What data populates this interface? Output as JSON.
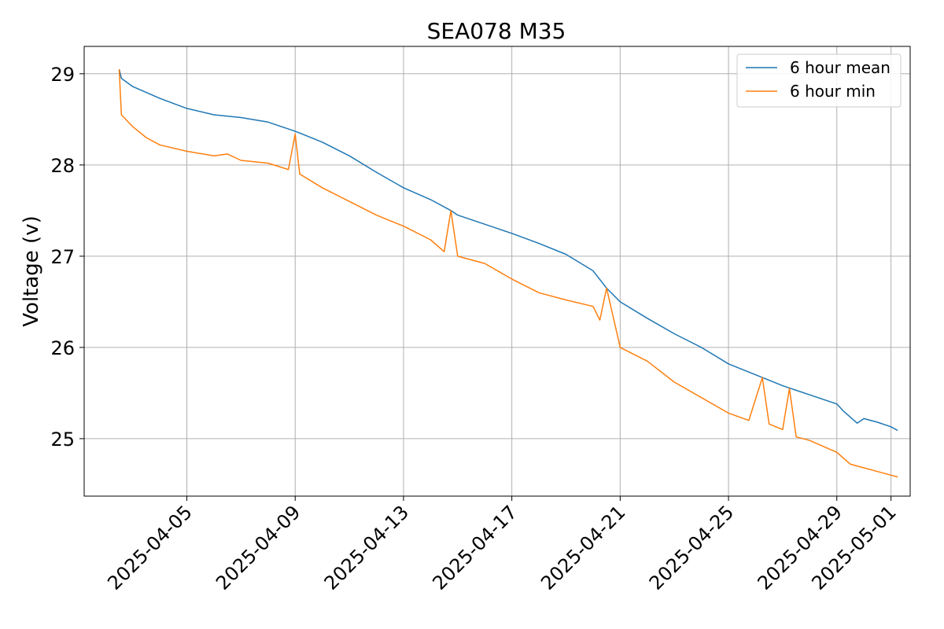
{
  "chart_data": {
    "type": "line",
    "title": "SEA078 M35",
    "xlabel": "",
    "ylabel": "Voltage (v)",
    "x_ticks": [
      "2025-04-05",
      "2025-04-09",
      "2025-04-13",
      "2025-04-17",
      "2025-04-21",
      "2025-04-25",
      "2025-04-29",
      "2025-05-01"
    ],
    "y_ticks": [
      25,
      26,
      27,
      28,
      29
    ],
    "xlim": [
      "2025-04-01T05:00",
      "2025-05-01T17:00"
    ],
    "ylim": [
      24.37,
      29.3
    ],
    "grid": true,
    "legend_position": "top-right",
    "colors": {
      "mean": "#1f77b4",
      "min": "#ff7f0e"
    },
    "series": [
      {
        "name": "6 hour mean",
        "x": [
          "2025-04-02T12:00",
          "2025-04-02T14:00",
          "2025-04-03T00:00",
          "2025-04-04T00:00",
          "2025-04-05T00:00",
          "2025-04-06T00:00",
          "2025-04-07T00:00",
          "2025-04-08T00:00",
          "2025-04-09T00:00",
          "2025-04-10T00:00",
          "2025-04-11T00:00",
          "2025-04-12T00:00",
          "2025-04-13T00:00",
          "2025-04-14T00:00",
          "2025-04-14T18:00",
          "2025-04-15T00:00",
          "2025-04-16T00:00",
          "2025-04-17T00:00",
          "2025-04-18T00:00",
          "2025-04-19T00:00",
          "2025-04-20T00:00",
          "2025-04-20T12:00",
          "2025-04-21T00:00",
          "2025-04-22T00:00",
          "2025-04-23T00:00",
          "2025-04-24T00:00",
          "2025-04-25T00:00",
          "2025-04-26T00:00",
          "2025-04-27T00:00",
          "2025-04-28T00:00",
          "2025-04-29T00:00",
          "2025-04-29T06:00",
          "2025-04-29T18:00",
          "2025-04-30T00:00",
          "2025-04-30T12:00",
          "2025-05-01T00:00",
          "2025-05-01T06:00"
        ],
        "values": [
          29.05,
          28.95,
          28.86,
          28.73,
          28.62,
          28.55,
          28.52,
          28.47,
          28.37,
          28.25,
          28.1,
          27.92,
          27.75,
          27.62,
          27.5,
          27.45,
          27.35,
          27.25,
          27.14,
          27.02,
          26.84,
          26.65,
          26.5,
          26.32,
          26.15,
          26.0,
          25.82,
          25.7,
          25.58,
          25.48,
          25.38,
          25.3,
          25.17,
          25.22,
          25.18,
          25.13,
          25.09
        ]
      },
      {
        "name": "6 hour min",
        "x": [
          "2025-04-02T12:00",
          "2025-04-02T14:00",
          "2025-04-03T00:00",
          "2025-04-03T12:00",
          "2025-04-04T00:00",
          "2025-04-05T00:00",
          "2025-04-06T00:00",
          "2025-04-06T12:00",
          "2025-04-07T00:00",
          "2025-04-08T00:00",
          "2025-04-08T18:00",
          "2025-04-09T00:00",
          "2025-04-09T04:00",
          "2025-04-10T00:00",
          "2025-04-11T00:00",
          "2025-04-12T00:00",
          "2025-04-13T00:00",
          "2025-04-14T00:00",
          "2025-04-14T12:00",
          "2025-04-14T18:00",
          "2025-04-15T00:00",
          "2025-04-16T00:00",
          "2025-04-17T00:00",
          "2025-04-18T00:00",
          "2025-04-19T00:00",
          "2025-04-20T00:00",
          "2025-04-20T06:00",
          "2025-04-20T12:00",
          "2025-04-21T00:00",
          "2025-04-22T00:00",
          "2025-04-23T00:00",
          "2025-04-24T00:00",
          "2025-04-25T00:00",
          "2025-04-25T18:00",
          "2025-04-26T06:00",
          "2025-04-26T12:00",
          "2025-04-27T00:00",
          "2025-04-27T06:00",
          "2025-04-27T12:00",
          "2025-04-28T00:00",
          "2025-04-29T00:00",
          "2025-04-29T12:00",
          "2025-04-30T00:00",
          "2025-04-30T12:00",
          "2025-05-01T00:00",
          "2025-05-01T06:00"
        ],
        "values": [
          29.05,
          28.55,
          28.42,
          28.3,
          28.22,
          28.15,
          28.1,
          28.12,
          28.05,
          28.02,
          27.95,
          28.34,
          27.9,
          27.75,
          27.6,
          27.45,
          27.33,
          27.18,
          27.05,
          27.5,
          27.0,
          26.92,
          26.75,
          26.6,
          26.52,
          26.45,
          26.3,
          26.65,
          26.0,
          25.85,
          25.62,
          25.45,
          25.28,
          25.2,
          25.67,
          25.16,
          25.1,
          25.55,
          25.02,
          24.98,
          24.85,
          24.72,
          24.68,
          24.64,
          24.6,
          24.58
        ]
      }
    ]
  }
}
